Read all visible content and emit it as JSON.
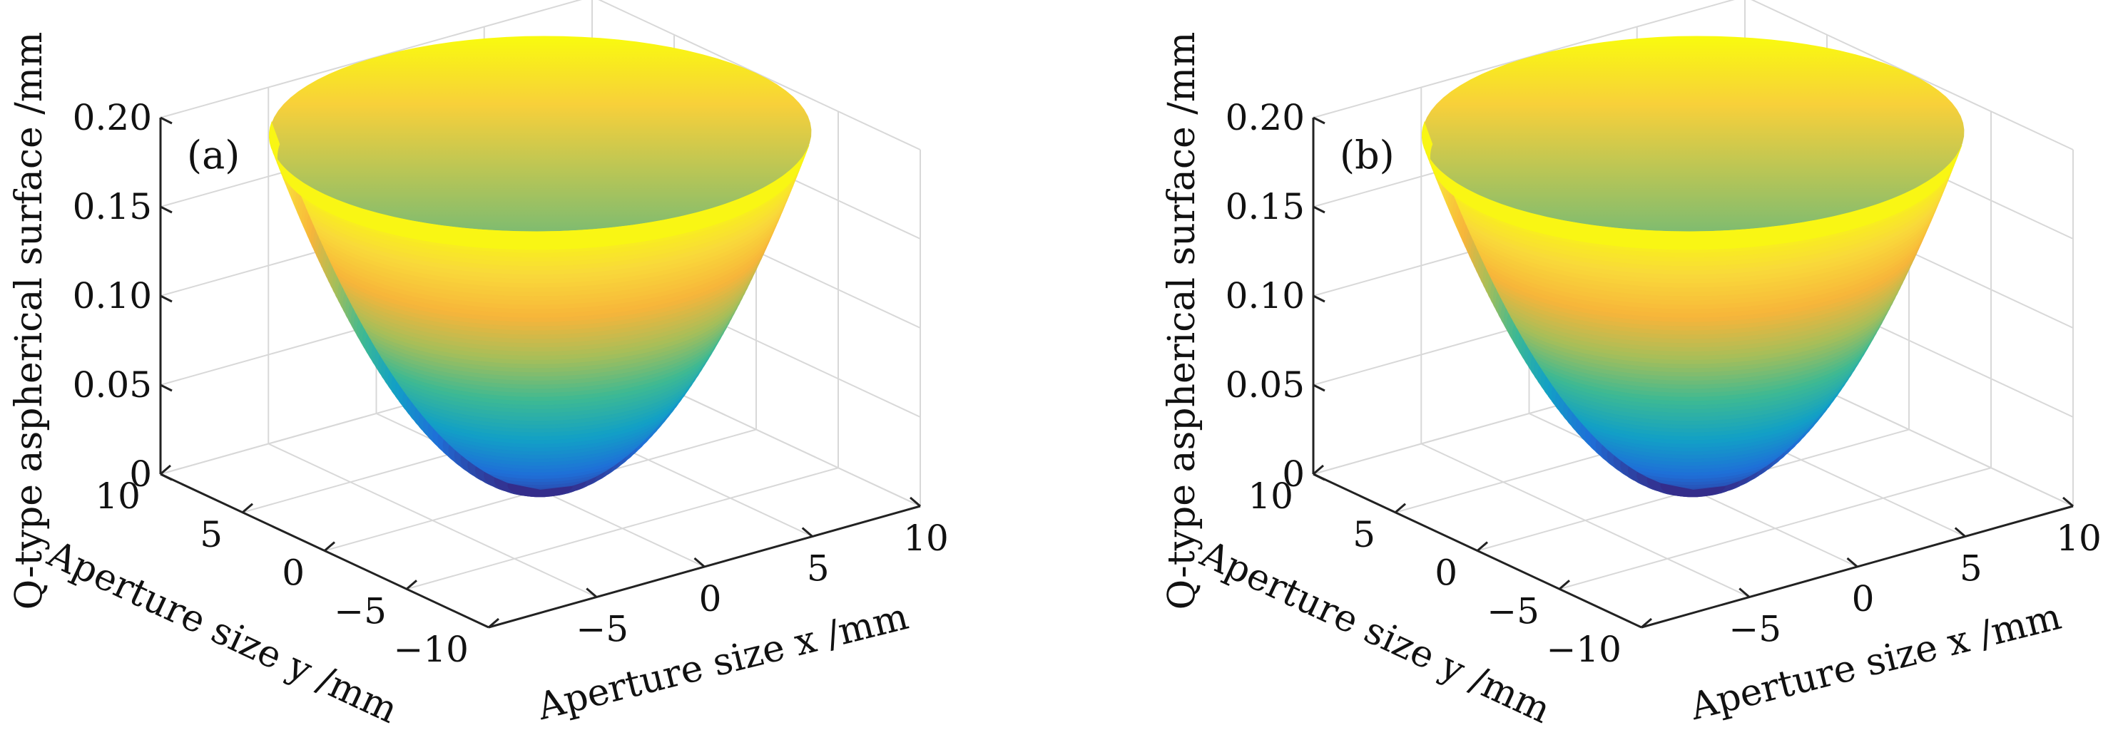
{
  "chart_data": [
    {
      "type": "surface3d",
      "panel_label": "(a)",
      "xlabel": "Aperture size x /mm",
      "ylabel": "Aperture size y /mm",
      "zlabel": "Q-type aspherical surface /mm",
      "xlim": [
        -10,
        10
      ],
      "ylim": [
        -10,
        10
      ],
      "zlim": [
        0,
        0.2
      ],
      "xticks": [
        "-5",
        "0",
        "5",
        "10"
      ],
      "yticks": [
        "-10",
        "-5",
        "0",
        "5",
        "10"
      ],
      "zticks": [
        "0",
        "0.05",
        "0.10",
        "0.15",
        "0.20"
      ],
      "aperture_radius": 10,
      "sag_at_edge": 0.2,
      "sag_at_center": 0,
      "colormap": [
        "#352a87",
        "#1f6fd8",
        "#12a0c6",
        "#3db993",
        "#a5be5a",
        "#f7b53a",
        "#f9d93a",
        "#f9fb0e"
      ],
      "grid": true
    },
    {
      "type": "surface3d",
      "panel_label": "(b)",
      "xlabel": "Aperture size x /mm",
      "ylabel": "Aperture size y /mm",
      "zlabel": "Q-type aspherical surface /mm",
      "xlim": [
        -10,
        10
      ],
      "ylim": [
        -10,
        10
      ],
      "zlim": [
        0,
        0.2
      ],
      "xticks": [
        "-5",
        "0",
        "5",
        "10"
      ],
      "yticks": [
        "-10",
        "-5",
        "0",
        "5",
        "10"
      ],
      "zticks": [
        "0",
        "0.05",
        "0.10",
        "0.15",
        "0.20"
      ],
      "aperture_radius": 10,
      "sag_at_edge": 0.2,
      "sag_at_center": 0,
      "colormap": [
        "#352a87",
        "#1f6fd8",
        "#12a0c6",
        "#3db993",
        "#a5be5a",
        "#f7b53a",
        "#f9d93a",
        "#f9fb0e"
      ],
      "grid": true
    }
  ]
}
